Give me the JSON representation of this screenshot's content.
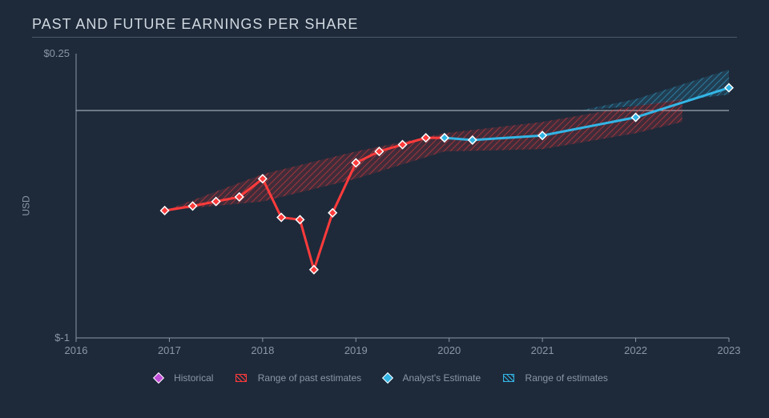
{
  "chart": {
    "type": "line-area",
    "title": "PAST AND FUTURE EARNINGS PER SHARE",
    "y_axis_label": "USD",
    "background_color": "#1e2a3a",
    "title_color": "#d0d8e0",
    "axis_text_color": "#8a96a5",
    "axis_line_color": "#8a96a5",
    "zero_line_color": "#c0c8d0",
    "title_fontsize": 18,
    "axis_fontsize": 13,
    "x": {
      "min": 2016,
      "max": 2023,
      "ticks": [
        2016,
        2017,
        2018,
        2019,
        2020,
        2021,
        2022,
        2023
      ]
    },
    "y": {
      "min": -1,
      "max": 0.25,
      "ticks": [
        {
          "v": 0.25,
          "label": "$0.25"
        },
        {
          "v": -1,
          "label": "$-1"
        }
      ],
      "zero_line_at": 0
    },
    "series": {
      "historical": {
        "label": "Historical",
        "color": "#ff3b3b",
        "marker_border": "#ffffff",
        "marker_shape": "diamond",
        "line_width": 3,
        "points": [
          {
            "x": 2016.95,
            "y": -0.44
          },
          {
            "x": 2017.25,
            "y": -0.42
          },
          {
            "x": 2017.5,
            "y": -0.4
          },
          {
            "x": 2017.75,
            "y": -0.38
          },
          {
            "x": 2018.0,
            "y": -0.3
          },
          {
            "x": 2018.2,
            "y": -0.47
          },
          {
            "x": 2018.4,
            "y": -0.48
          },
          {
            "x": 2018.55,
            "y": -0.7
          },
          {
            "x": 2018.75,
            "y": -0.45
          },
          {
            "x": 2019.0,
            "y": -0.23
          },
          {
            "x": 2019.25,
            "y": -0.18
          },
          {
            "x": 2019.5,
            "y": -0.15
          },
          {
            "x": 2019.75,
            "y": -0.12
          },
          {
            "x": 2019.95,
            "y": -0.12
          }
        ]
      },
      "analyst_estimate": {
        "label": "Analyst's Estimate",
        "color": "#33b5e5",
        "marker_border": "#ffffff",
        "marker_shape": "diamond",
        "line_width": 3,
        "points": [
          {
            "x": 2019.95,
            "y": -0.12
          },
          {
            "x": 2020.25,
            "y": -0.13
          },
          {
            "x": 2021.0,
            "y": -0.11
          },
          {
            "x": 2022.0,
            "y": -0.03
          },
          {
            "x": 2023.0,
            "y": 0.1
          }
        ]
      },
      "range_past": {
        "label": "Range of past estimates",
        "fill_color": "#ff3b3b",
        "fill_opacity": 0.15,
        "hatch_color": "#ff3b3b",
        "hatch_opacity": 0.5,
        "upper": [
          {
            "x": 2016.95,
            "y": -0.44
          },
          {
            "x": 2018.0,
            "y": -0.28
          },
          {
            "x": 2019.0,
            "y": -0.18
          },
          {
            "x": 2019.95,
            "y": -0.1
          },
          {
            "x": 2021.0,
            "y": -0.05
          },
          {
            "x": 2022.0,
            "y": 0.02
          },
          {
            "x": 2022.5,
            "y": 0.05
          }
        ],
        "lower": [
          {
            "x": 2016.95,
            "y": -0.44
          },
          {
            "x": 2018.0,
            "y": -0.4
          },
          {
            "x": 2019.0,
            "y": -0.3
          },
          {
            "x": 2019.95,
            "y": -0.18
          },
          {
            "x": 2021.0,
            "y": -0.17
          },
          {
            "x": 2022.0,
            "y": -0.1
          },
          {
            "x": 2022.5,
            "y": -0.05
          }
        ]
      },
      "range_future": {
        "label": "Range of estimates",
        "fill_color": "#33b5e5",
        "fill_opacity": 0.15,
        "hatch_color": "#33b5e5",
        "hatch_opacity": 0.5,
        "upper": [
          {
            "x": 2021.4,
            "y": 0.0
          },
          {
            "x": 2022.0,
            "y": 0.05
          },
          {
            "x": 2023.0,
            "y": 0.18
          }
        ],
        "lower": [
          {
            "x": 2021.4,
            "y": 0.0
          },
          {
            "x": 2022.0,
            "y": 0.02
          },
          {
            "x": 2023.0,
            "y": 0.07
          }
        ]
      }
    },
    "legend": {
      "historical_marker_color": "#c04dd8",
      "past_range_swatch_color": "#ff3b3b",
      "analyst_marker_color": "#33b5e5",
      "future_range_swatch_color": "#33b5e5"
    }
  }
}
